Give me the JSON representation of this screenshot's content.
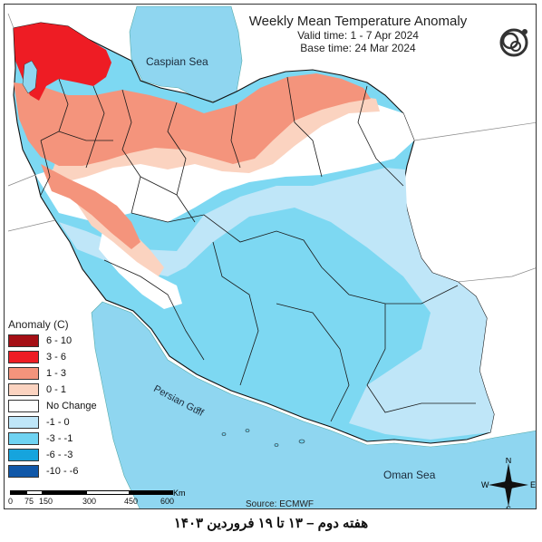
{
  "map": {
    "title": "Weekly Mean Temperature Anomaly",
    "valid_time": "Valid time: 1 - 7 Apr 2024",
    "base_time": "Base time: 24 Mar 2024",
    "labels": {
      "caspian": "Caspian Sea",
      "gulf": "Persian Gulf",
      "oman": "Oman Sea"
    },
    "source": "Source: ECMWF"
  },
  "legend": {
    "title": "Anomaly (C)",
    "items": [
      {
        "label": "6 - 10",
        "color": "#a50f15"
      },
      {
        "label": "3 - 6",
        "color": "#ee1c24"
      },
      {
        "label": "1 - 3",
        "color": "#f4947c"
      },
      {
        "label": "0 - 1",
        "color": "#fbd3c0"
      },
      {
        "label": "No Change",
        "color": "#ffffff"
      },
      {
        "label": "-1 - 0",
        "color": "#bfe6f8"
      },
      {
        "label": "-3 - -1",
        "color": "#6fd3f2"
      },
      {
        "label": "-6 - -3",
        "color": "#16a4dd"
      },
      {
        "label": "-10 - -6",
        "color": "#1057a8"
      }
    ]
  },
  "scale": {
    "ticks": [
      "0",
      "75",
      "150",
      "300",
      "450",
      "600"
    ],
    "unit": "Km"
  },
  "compass": {
    "n": "N",
    "s": "S",
    "e": "E",
    "w": "W"
  },
  "caption": "هفته دوم – ۱۳ تا ۱۹ فروردین ۱۴۰۳"
}
